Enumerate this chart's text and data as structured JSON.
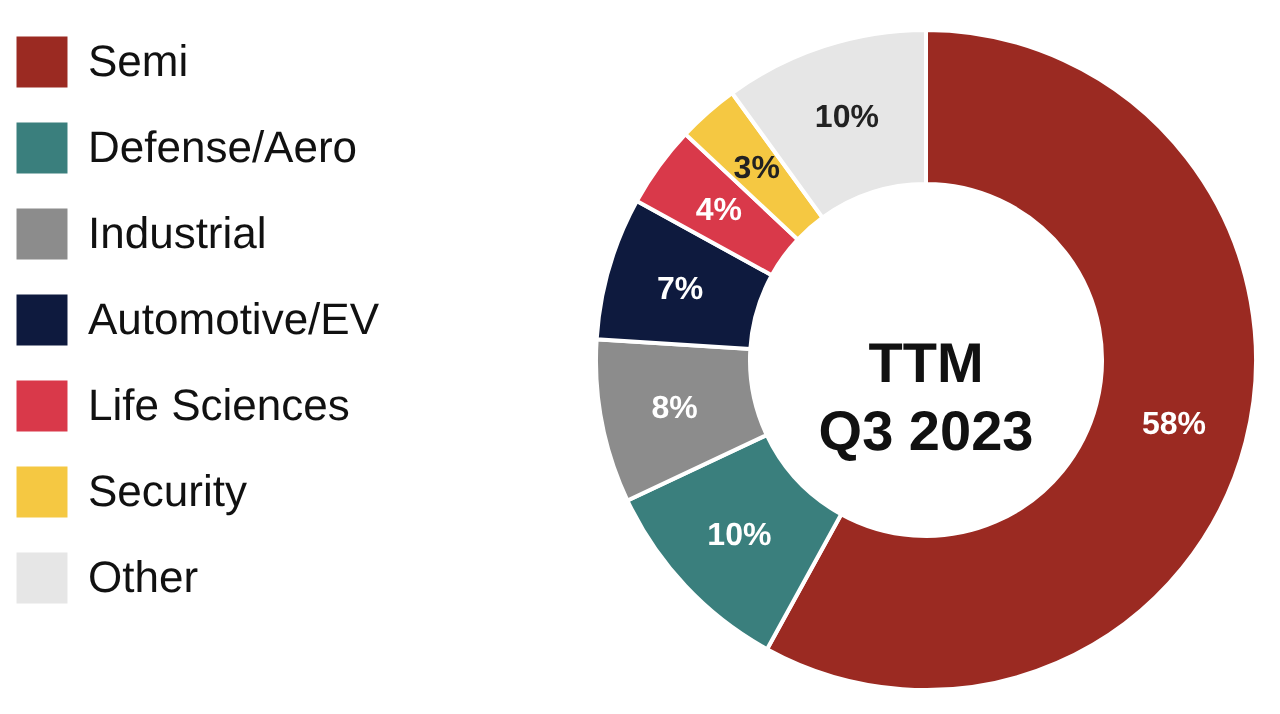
{
  "chart_data": {
    "type": "donut",
    "title": "TTM\nQ3 2023",
    "categories": [
      "Semi",
      "Defense/Aero",
      "Industrial",
      "Automotive/EV",
      "Life Sciences",
      "Security",
      "Other"
    ],
    "values": [
      58,
      10,
      8,
      7,
      4,
      3,
      10
    ],
    "colors": [
      "#9b2a22",
      "#3a7f7d",
      "#8c8c8c",
      "#0e1a3e",
      "#d9394a",
      "#f5c842",
      "#e6e6e6"
    ],
    "value_labels": [
      "58%",
      "10%",
      "8%",
      "7%",
      "4%",
      "3%",
      "10%"
    ],
    "legend": "left"
  }
}
